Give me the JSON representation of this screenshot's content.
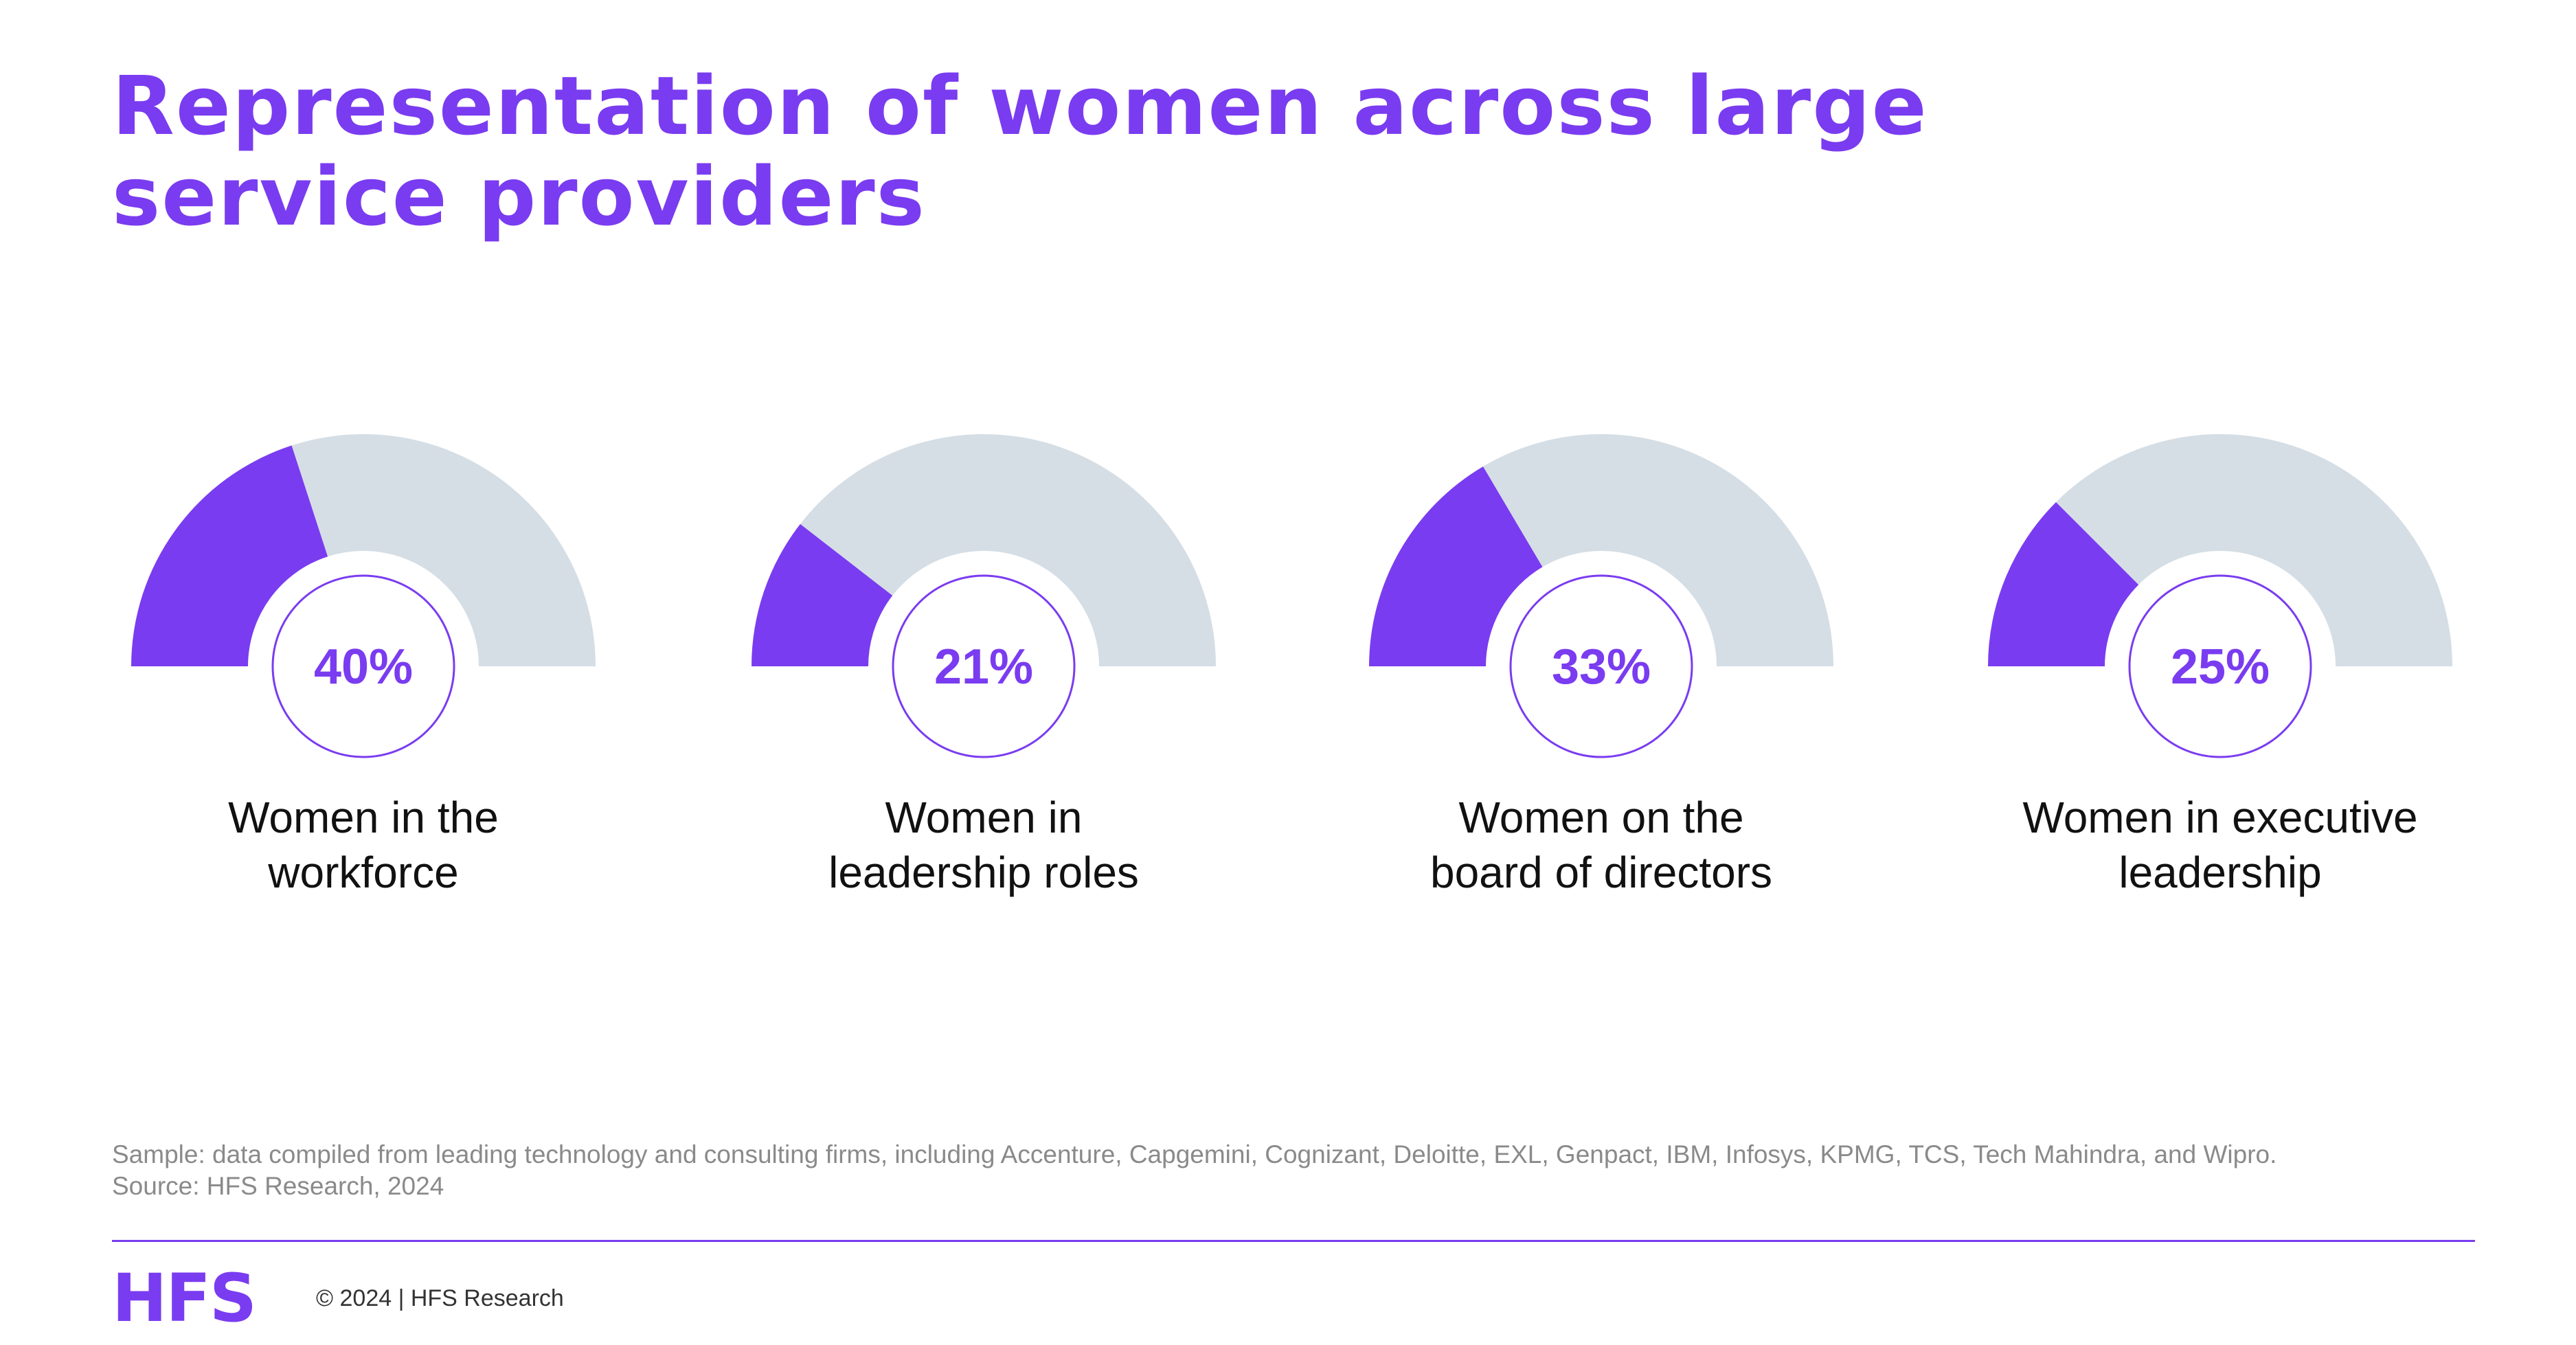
{
  "title": {
    "line1": "Representation of women across large",
    "line2": "service providers"
  },
  "colors": {
    "accent": "#7a3cf0",
    "track": "#d5dee5",
    "label": "#111111",
    "footnote": "#8a8a8a"
  },
  "chart_data": [
    {
      "type": "gauge",
      "value": 40,
      "value_label": "40%",
      "label_line1": "Women in the",
      "label_line2": "workforce"
    },
    {
      "type": "gauge",
      "value": 21,
      "value_label": "21%",
      "label_line1": "Women in",
      "label_line2": "leadership roles"
    },
    {
      "type": "gauge",
      "value": 33,
      "value_label": "33%",
      "label_line1": "Women on the",
      "label_line2": "board of directors"
    },
    {
      "type": "gauge",
      "value": 25,
      "value_label": "25%",
      "label_line1": "Women in executive",
      "label_line2": "leadership"
    }
  ],
  "footnote": {
    "sample": "Sample: data compiled from leading technology and consulting firms, including Accenture, Capgemini, Cognizant, Deloitte, EXL, Genpact, IBM, Infosys, KPMG, TCS, Tech Mahindra, and Wipro.",
    "source": "Source: HFS Research, 2024"
  },
  "footer": {
    "logo": "HFS",
    "copyright": "© 2024 | HFS Research"
  }
}
